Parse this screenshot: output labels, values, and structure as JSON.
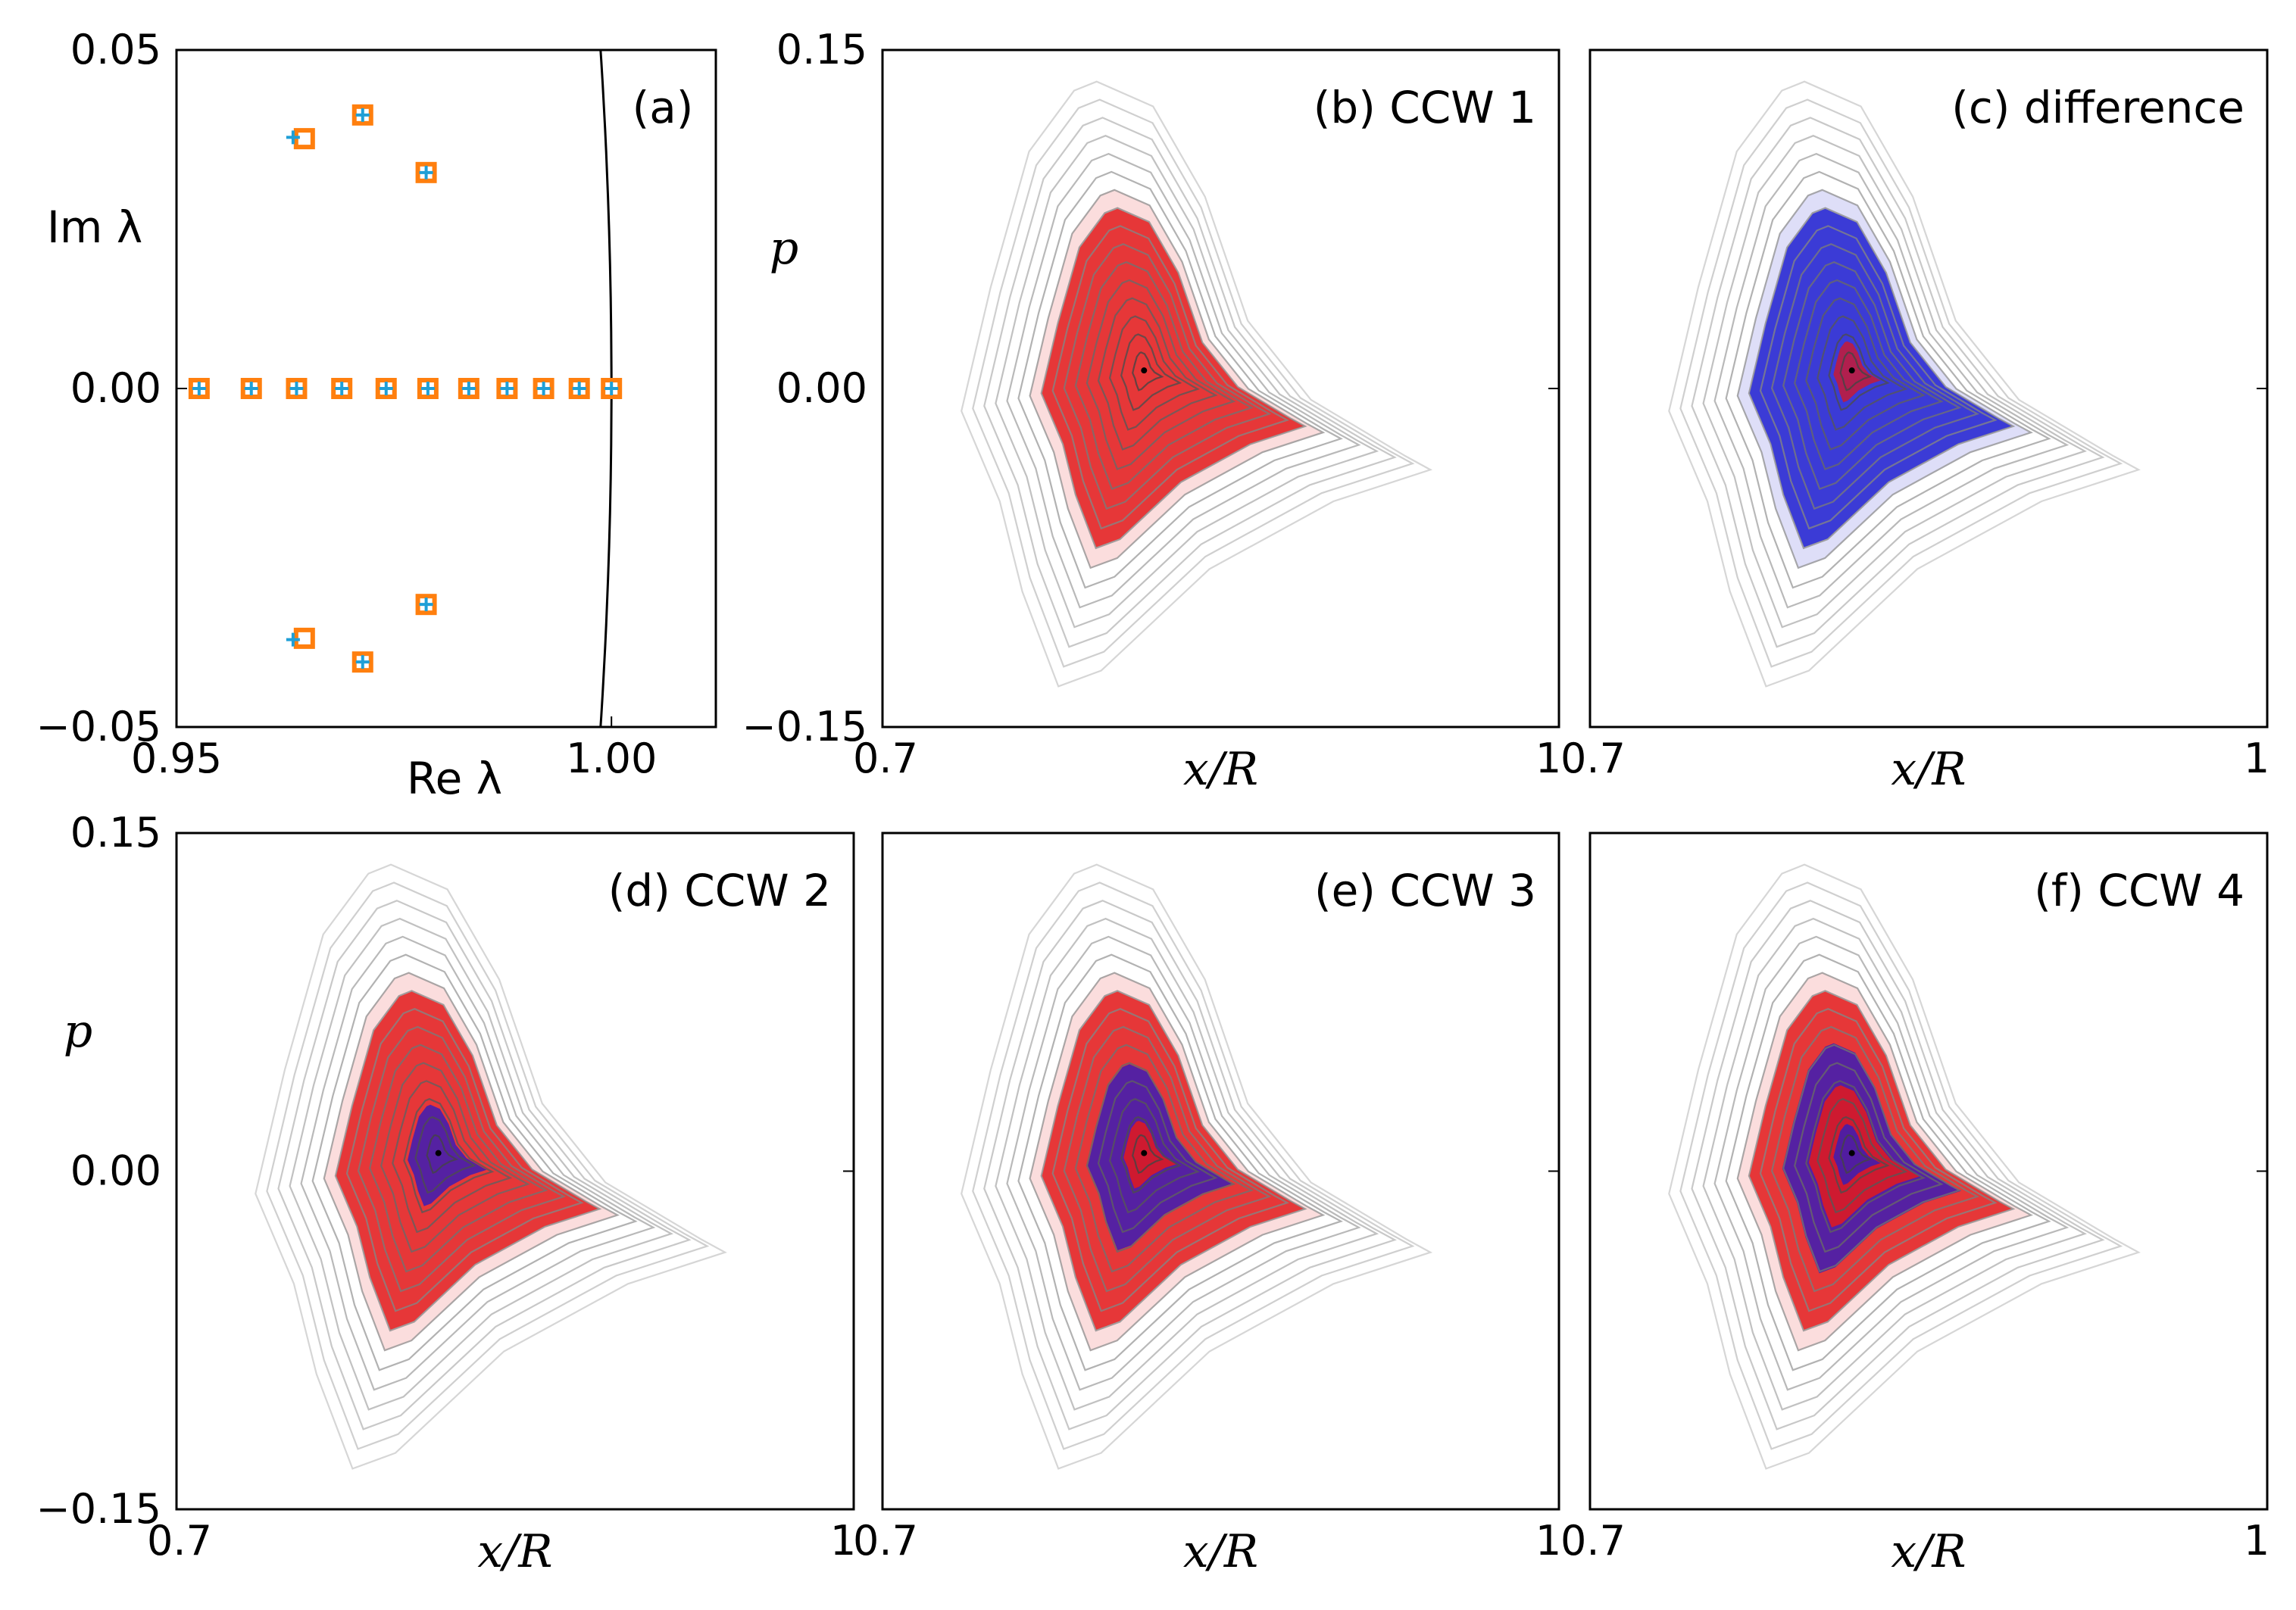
{
  "chart_data": [
    {
      "panel": "a",
      "type": "scatter",
      "label": "(a)",
      "xlabel": "Re λ",
      "ylabel": "Im λ",
      "xlim": [
        0.95,
        1.012
      ],
      "ylim": [
        -0.05,
        0.05
      ],
      "xticks": [
        "0.95",
        "1.00"
      ],
      "yticks": [
        "0.05",
        "0.00",
        "−0.05"
      ],
      "colors": {
        "squares": "#ff7f0e",
        "crosses": "#1f9fd6",
        "circle": "#000000"
      },
      "series": [
        {
          "marker": "square",
          "points": [
            [
              0.9526,
              0.0
            ],
            [
              0.9586,
              0.0
            ],
            [
              0.9638,
              0.0
            ],
            [
              0.969,
              0.0
            ],
            [
              0.9741,
              0.0
            ],
            [
              0.9789,
              0.0
            ],
            [
              0.9836,
              0.0
            ],
            [
              0.988,
              0.0
            ],
            [
              0.9922,
              0.0
            ],
            [
              0.9963,
              0.0
            ],
            [
              1.0,
              0.0
            ],
            [
              0.9647,
              0.0369
            ],
            [
              0.9647,
              -0.0369
            ],
            [
              0.9714,
              0.0404
            ],
            [
              0.9714,
              -0.0404
            ],
            [
              0.9787,
              0.0319
            ],
            [
              0.9787,
              -0.0319
            ]
          ]
        },
        {
          "marker": "cross",
          "points": [
            [
              0.9526,
              0.0
            ],
            [
              0.9586,
              0.0
            ],
            [
              0.9638,
              0.0
            ],
            [
              0.969,
              0.0
            ],
            [
              0.9741,
              0.0
            ],
            [
              0.9789,
              0.0
            ],
            [
              0.9836,
              0.0
            ],
            [
              0.988,
              0.0
            ],
            [
              0.9922,
              0.0
            ],
            [
              0.9963,
              0.0
            ],
            [
              1.0,
              0.0
            ],
            [
              0.9634,
              0.0371
            ],
            [
              0.9634,
              -0.0371
            ],
            [
              0.9714,
              0.0404
            ],
            [
              0.9714,
              -0.0404
            ],
            [
              0.9787,
              0.0319
            ],
            [
              0.9787,
              -0.0319
            ]
          ]
        }
      ],
      "unit_circle": true
    },
    {
      "panel": "b",
      "type": "heatmap",
      "label": "(b) CCW 1",
      "xlabel": "x/R",
      "ylabel": "p",
      "xlim": [
        0.7,
        1.0
      ],
      "ylim": [
        -0.15,
        0.15
      ],
      "xticks": [
        "0.7",
        "1"
      ],
      "yticks": [
        "0.15",
        "0.00",
        "−0.15"
      ],
      "center": [
        0.816,
        0.008
      ],
      "rings": [
        {
          "to": 1.0,
          "color": "red"
        }
      ]
    },
    {
      "panel": "c",
      "type": "heatmap",
      "label": "(c) difference",
      "xlabel": "x/R",
      "xlim": [
        0.7,
        1.0
      ],
      "ylim": [
        -0.15,
        0.15
      ],
      "xticks": [
        "0.7",
        "1"
      ],
      "center": [
        0.816,
        0.008
      ],
      "rings": [
        {
          "to": 0.18,
          "color": "red"
        },
        {
          "to": 1.0,
          "color": "blue"
        }
      ]
    },
    {
      "panel": "d",
      "type": "heatmap",
      "label": "(d) CCW 2",
      "xlabel": "x/R",
      "ylabel": "p",
      "xlim": [
        0.7,
        1.0
      ],
      "ylim": [
        -0.15,
        0.15
      ],
      "xticks": [
        "0.7",
        "1"
      ],
      "yticks": [
        "0.15",
        "0.00",
        "−0.15"
      ],
      "center": [
        0.816,
        0.008
      ],
      "rings": [
        {
          "to": 0.3,
          "color": "blue"
        },
        {
          "to": 1.0,
          "color": "red"
        }
      ]
    },
    {
      "panel": "e",
      "type": "heatmap",
      "label": "(e) CCW 3",
      "xlabel": "x/R",
      "xlim": [
        0.7,
        1.0
      ],
      "ylim": [
        -0.15,
        0.15
      ],
      "xticks": [
        "0.7",
        "1"
      ],
      "center": [
        0.816,
        0.008
      ],
      "rings": [
        {
          "to": 0.2,
          "color": "red"
        },
        {
          "to": 0.55,
          "color": "blue"
        },
        {
          "to": 1.0,
          "color": "red"
        }
      ]
    },
    {
      "panel": "f",
      "type": "heatmap",
      "label": "(f) CCW 4",
      "xlabel": "x/R",
      "xlim": [
        0.7,
        1.0
      ],
      "ylim": [
        -0.15,
        0.15
      ],
      "xticks": [
        "0.7",
        "1"
      ],
      "center": [
        0.816,
        0.008
      ],
      "rings": [
        {
          "to": 0.18,
          "color": "blue"
        },
        {
          "to": 0.42,
          "color": "red"
        },
        {
          "to": 0.68,
          "color": "blue"
        },
        {
          "to": 1.0,
          "color": "red"
        }
      ]
    }
  ]
}
